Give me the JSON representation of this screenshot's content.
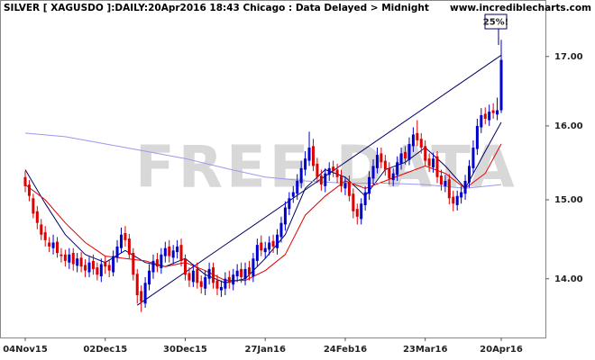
{
  "chart_data": {
    "type": "candlestick",
    "title": "SILVER [ XAGUSDO ]:DAILY:20Apr2016 18:43 Chicago : Data Delayed > Midnight",
    "source": "www.incrediblecharts.com",
    "watermark": "FREE DATA",
    "annotation": "25%!",
    "log_scale": true,
    "up_color": "#0000cc",
    "down_color": "#dd0000",
    "categories": [
      "04Nov15",
      null,
      null,
      null,
      null,
      null,
      null,
      null,
      null,
      null,
      null,
      null,
      null,
      null,
      null,
      null,
      null,
      null,
      null,
      null,
      "02Dec15",
      null,
      null,
      null,
      null,
      null,
      null,
      null,
      null,
      null,
      null,
      null,
      null,
      null,
      null,
      null,
      null,
      null,
      null,
      null,
      "30Dec15",
      null,
      null,
      null,
      null,
      null,
      null,
      null,
      null,
      null,
      null,
      null,
      null,
      null,
      null,
      null,
      null,
      null,
      null,
      null,
      "27Jan16",
      null,
      null,
      null,
      null,
      null,
      null,
      null,
      null,
      null,
      null,
      null,
      null,
      null,
      null,
      null,
      null,
      null,
      null,
      null,
      "24Feb16",
      null,
      null,
      null,
      null,
      null,
      null,
      null,
      null,
      null,
      null,
      null,
      null,
      null,
      null,
      null,
      null,
      null,
      null,
      null,
      "23Mar16",
      null,
      null,
      null,
      null,
      null,
      null,
      null,
      null,
      null,
      null,
      null,
      null,
      null,
      null,
      null,
      null,
      null,
      null,
      "20Apr16"
    ],
    "open": [
      15.3,
      15.2,
      15.02,
      14.85,
      14.68,
      14.58,
      14.45,
      14.38,
      14.46,
      14.3,
      14.3,
      14.2,
      14.32,
      14.16,
      14.26,
      14.17,
      14.08,
      14.22,
      14.14,
      14.03,
      14.2,
      14.17,
      14.08,
      14.26,
      14.38,
      14.57,
      14.5,
      14.32,
      14.06,
      13.85,
      13.7,
      13.93,
      14.08,
      14.24,
      14.13,
      14.28,
      14.4,
      14.26,
      14.33,
      14.42,
      14.24,
      14.07,
      13.96,
      14.12,
      13.97,
      13.88,
      14.0,
      14.14,
      13.98,
      13.86,
      13.88,
      14.02,
      13.93,
      14.03,
      14.12,
      14.0,
      14.14,
      14.03,
      14.22,
      14.45,
      14.33,
      14.36,
      14.47,
      14.38,
      14.52,
      14.68,
      14.88,
      15.04,
      15.08,
      15.22,
      15.4,
      15.52,
      15.72,
      15.48,
      15.32,
      15.18,
      15.33,
      15.44,
      15.4,
      15.32,
      15.15,
      15.24,
      15.08,
      14.88,
      14.75,
      14.93,
      15.08,
      15.28,
      15.42,
      15.62,
      15.52,
      15.42,
      15.26,
      15.33,
      15.48,
      15.64,
      15.53,
      15.72,
      15.9,
      15.82,
      15.72,
      15.55,
      15.43,
      15.58,
      15.32,
      15.18,
      15.27,
      15.04,
      14.93,
      15.03,
      15.08,
      15.23,
      15.42,
      15.68,
      15.98,
      16.17,
      16.08,
      16.22,
      16.16,
      16.22
    ],
    "high": [
      15.38,
      15.26,
      15.08,
      14.92,
      14.75,
      14.66,
      14.52,
      14.55,
      14.52,
      14.38,
      14.36,
      14.38,
      14.38,
      14.32,
      14.33,
      14.24,
      14.27,
      14.3,
      14.2,
      14.25,
      14.28,
      14.24,
      14.35,
      14.48,
      14.64,
      14.66,
      14.56,
      14.38,
      14.12,
      13.92,
      14.02,
      14.18,
      14.3,
      14.32,
      14.38,
      14.46,
      14.48,
      14.42,
      14.48,
      14.5,
      14.3,
      14.14,
      14.18,
      14.2,
      14.04,
      14.1,
      14.2,
      14.2,
      14.05,
      13.98,
      14.08,
      14.1,
      14.12,
      14.18,
      14.2,
      14.2,
      14.22,
      14.32,
      14.5,
      14.54,
      14.46,
      14.53,
      14.55,
      14.62,
      14.78,
      14.98,
      15.1,
      15.18,
      15.34,
      15.52,
      15.65,
      15.92,
      15.82,
      15.56,
      15.4,
      15.42,
      15.5,
      15.52,
      15.48,
      15.4,
      15.3,
      15.32,
      15.15,
      14.95,
      15.02,
      15.18,
      15.38,
      15.54,
      15.7,
      15.7,
      15.6,
      15.5,
      15.42,
      15.58,
      15.7,
      15.72,
      15.84,
      15.98,
      16.08,
      15.9,
      15.8,
      15.62,
      15.63,
      15.65,
      15.4,
      15.33,
      15.34,
      15.12,
      15.12,
      15.18,
      15.33,
      15.53,
      15.8,
      16.1,
      16.25,
      16.26,
      16.3,
      16.32,
      16.4,
      17.25
    ],
    "low": [
      15.1,
      14.98,
      14.76,
      14.62,
      14.48,
      14.4,
      14.33,
      14.3,
      14.26,
      14.2,
      14.15,
      14.12,
      14.1,
      14.08,
      14.08,
      14.02,
      14.02,
      14.05,
      13.98,
      13.96,
      14.06,
      14.02,
      14.03,
      14.2,
      14.32,
      14.4,
      14.25,
      13.98,
      13.7,
      13.6,
      13.65,
      13.86,
      14.0,
      14.08,
      14.06,
      14.2,
      14.2,
      14.18,
      14.25,
      14.15,
      13.98,
      13.9,
      13.9,
      13.88,
      13.82,
      13.8,
      13.93,
      13.88,
      13.8,
      13.78,
      13.8,
      13.88,
      13.86,
      13.96,
      13.95,
      13.92,
      13.98,
      13.96,
      14.15,
      14.28,
      14.25,
      14.29,
      14.32,
      14.3,
      14.45,
      14.6,
      14.8,
      14.96,
      15.0,
      15.15,
      15.32,
      15.45,
      15.38,
      15.22,
      15.12,
      15.1,
      15.25,
      15.3,
      15.22,
      15.1,
      15.06,
      14.98,
      14.76,
      14.68,
      14.68,
      14.86,
      15.0,
      15.2,
      15.35,
      15.42,
      15.32,
      15.2,
      15.18,
      15.25,
      15.4,
      15.47,
      15.46,
      15.64,
      15.72,
      15.62,
      15.45,
      15.37,
      15.36,
      15.22,
      15.12,
      15.1,
      14.94,
      14.85,
      14.86,
      14.95,
      15.0,
      15.16,
      15.35,
      15.6,
      15.9,
      16.02,
      16.0,
      16.1,
      16.08,
      16.18
    ],
    "close": [
      15.18,
      15.05,
      14.82,
      14.7,
      14.55,
      14.48,
      14.4,
      14.45,
      14.32,
      14.28,
      14.22,
      14.3,
      14.18,
      14.25,
      14.15,
      14.1,
      14.2,
      14.12,
      14.05,
      14.18,
      14.15,
      14.1,
      14.28,
      14.4,
      14.55,
      14.48,
      14.3,
      14.05,
      13.8,
      13.72,
      13.95,
      14.1,
      14.22,
      14.15,
      14.3,
      14.38,
      14.28,
      14.35,
      14.4,
      14.22,
      14.05,
      13.98,
      14.1,
      13.95,
      13.9,
      14.02,
      14.12,
      13.95,
      13.88,
      13.9,
      14.0,
      13.95,
      14.05,
      14.1,
      14.02,
      14.12,
      14.05,
      14.25,
      14.42,
      14.35,
      14.38,
      14.45,
      14.4,
      14.55,
      14.7,
      14.9,
      15.02,
      15.1,
      15.25,
      15.42,
      15.55,
      15.7,
      15.45,
      15.3,
      15.2,
      15.35,
      15.42,
      15.38,
      15.3,
      15.18,
      15.22,
      15.05,
      14.85,
      14.78,
      14.95,
      15.1,
      15.3,
      15.45,
      15.6,
      15.5,
      15.4,
      15.28,
      15.35,
      15.5,
      15.62,
      15.55,
      15.75,
      15.88,
      15.8,
      15.7,
      15.52,
      15.45,
      15.55,
      15.3,
      15.2,
      15.25,
      15.02,
      14.95,
      15.05,
      15.1,
      15.25,
      15.45,
      15.7,
      16.0,
      16.15,
      16.1,
      16.2,
      16.18,
      16.22,
      16.95
    ],
    "overlays": [
      {
        "color": "#000066",
        "x": [
          0,
          5,
          10,
          15,
          20,
          25,
          30,
          35,
          40,
          45,
          50,
          55,
          60,
          65,
          70,
          75,
          80,
          85,
          90,
          95,
          100,
          105,
          110,
          115,
          119
        ],
        "values": [
          15.4,
          14.95,
          14.55,
          14.3,
          14.2,
          14.35,
          14.2,
          14.15,
          14.25,
          14.05,
          13.95,
          14.0,
          14.25,
          14.55,
          15.15,
          15.4,
          15.3,
          15.05,
          15.4,
          15.5,
          15.7,
          15.45,
          15.15,
          15.65,
          16.05
        ]
      },
      {
        "color": "#e00000",
        "x": [
          0,
          5,
          10,
          15,
          20,
          25,
          30,
          35,
          40,
          45,
          50,
          55,
          60,
          65,
          70,
          75,
          80,
          85,
          90,
          95,
          100,
          105,
          110,
          115,
          119
        ],
        "values": [
          15.2,
          15.0,
          14.7,
          14.45,
          14.28,
          14.25,
          14.22,
          14.15,
          14.2,
          14.1,
          13.98,
          13.98,
          14.1,
          14.3,
          14.8,
          15.05,
          15.25,
          15.15,
          15.25,
          15.35,
          15.45,
          15.35,
          15.15,
          15.35,
          15.75
        ]
      },
      {
        "color": "#9999ee",
        "x": [
          0,
          10,
          20,
          30,
          40,
          50,
          60,
          70,
          80,
          90,
          100,
          110,
          119
        ],
        "values": [
          15.9,
          15.85,
          15.75,
          15.65,
          15.55,
          15.42,
          15.3,
          15.25,
          15.22,
          15.22,
          15.2,
          15.15,
          15.2
        ]
      },
      {
        "color": "#000066",
        "x": [
          28,
          119
        ],
        "values": [
          13.68,
          17.02
        ]
      }
    ],
    "ylim": [
      13.3,
      17.86
    ],
    "yticks": [
      {
        "value": 14,
        "label": "14.00"
      },
      {
        "value": 15,
        "label": "15.00"
      },
      {
        "value": 16,
        "label": "16.00"
      },
      {
        "value": 17,
        "label": "17.00"
      }
    ]
  }
}
